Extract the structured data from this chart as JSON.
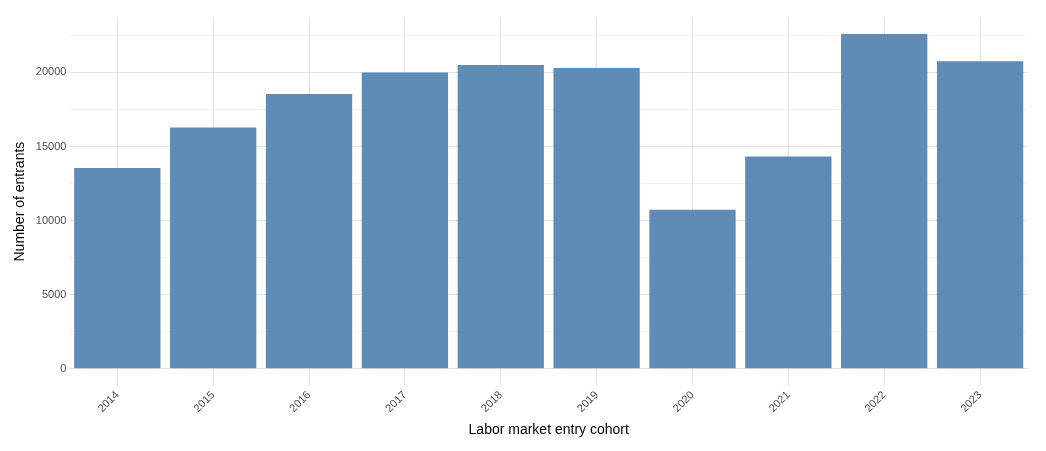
{
  "chart_data": {
    "type": "bar",
    "xlabel": "Labor market entry cohort",
    "ylabel": "Number of entrants",
    "categories": [
      "2014",
      "2015",
      "2016",
      "2017",
      "2018",
      "2019",
      "2020",
      "2021",
      "2022",
      "2023"
    ],
    "values": [
      13550,
      16280,
      18550,
      20000,
      20500,
      20300,
      10730,
      14320,
      22590,
      20760
    ],
    "color": "#5f8bb7",
    "ylim": [
      -1130,
      23700
    ],
    "yticks": [
      0,
      {
        "value": 2500,
        "label": null
      },
      5000,
      {
        "value": 7500,
        "label": null
      },
      10000,
      {
        "value": 12500,
        "label": null
      },
      15000,
      {
        "value": 17500,
        "label": null
      },
      20000,
      {
        "value": 22500,
        "label": null
      }
    ],
    "grid": true,
    "legend": false
  }
}
